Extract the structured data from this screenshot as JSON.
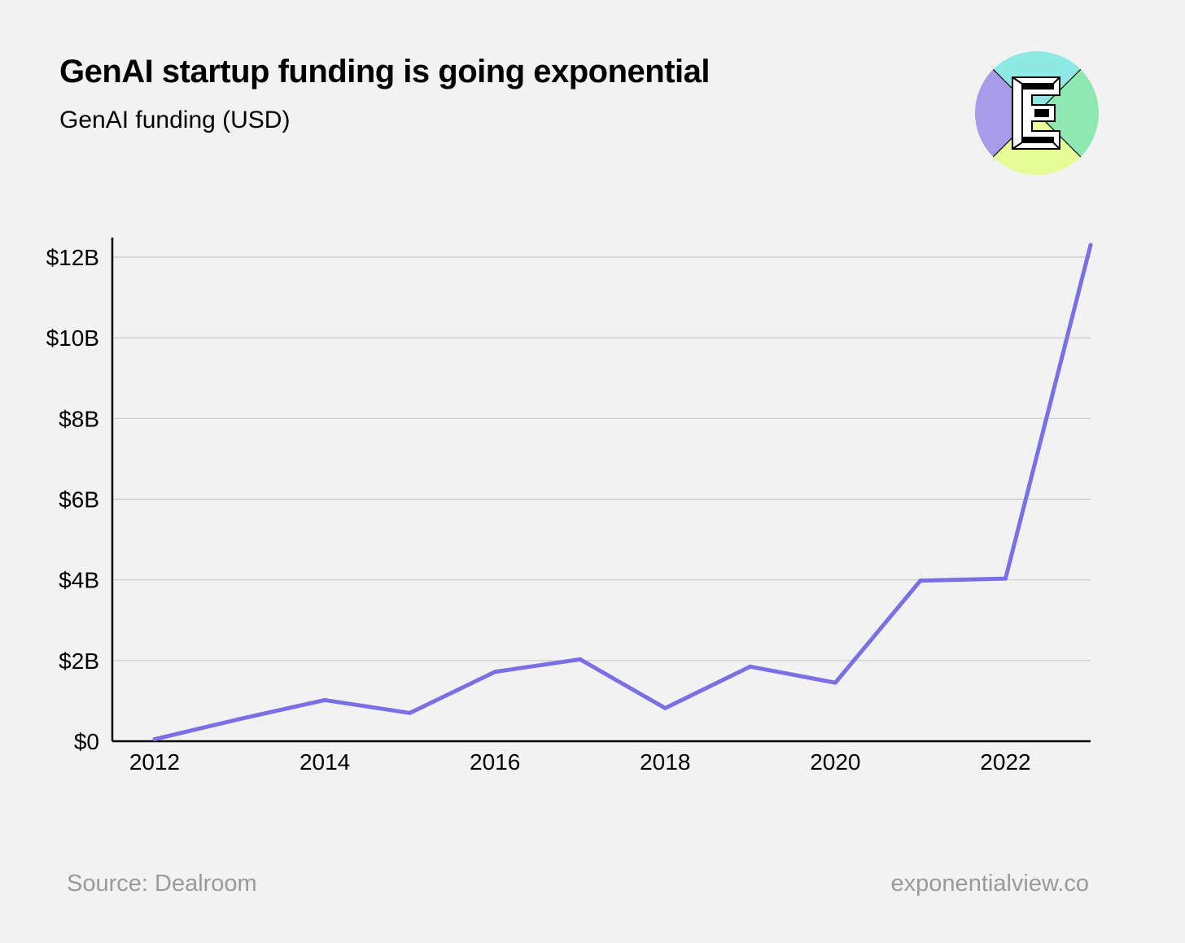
{
  "header": {
    "title": "GenAI startup funding is going exponential",
    "subtitle": "GenAI funding (USD)"
  },
  "footer": {
    "source": "Source: Dealroom",
    "site": "exponentialview.co"
  },
  "logo": {
    "letter": "E",
    "colors": {
      "top": "#8ee8e4",
      "right": "#8ee8b2",
      "bottom": "#e5fb96",
      "left": "#a89cea"
    }
  },
  "colors": {
    "line": "#7b6fe6",
    "grid": "#c8c8c8",
    "axis": "#000000"
  },
  "chart_data": {
    "type": "line",
    "title": "GenAI startup funding is going exponential",
    "ylabel": "GenAI funding (USD)",
    "xlabel": "",
    "x": [
      2012,
      2013,
      2014,
      2015,
      2016,
      2017,
      2018,
      2019,
      2020,
      2021,
      2022,
      2023
    ],
    "values": [
      0.05,
      0.55,
      1.02,
      0.7,
      1.72,
      2.03,
      0.82,
      1.85,
      1.45,
      3.98,
      4.03,
      12.3
    ],
    "unit": "USD billions",
    "xlim": [
      2011.5,
      2023
    ],
    "ylim": [
      0,
      12.5
    ],
    "xticks": [
      2012,
      2014,
      2016,
      2018,
      2020,
      2022
    ],
    "xtick_labels": [
      "2012",
      "2014",
      "2016",
      "2018",
      "2020",
      "2022"
    ],
    "yticks": [
      0,
      2,
      4,
      6,
      8,
      10,
      12
    ],
    "ytick_labels": [
      "$0",
      "$2B",
      "$4B",
      "$6B",
      "$8B",
      "$10B",
      "$12B"
    ],
    "grid": true
  }
}
